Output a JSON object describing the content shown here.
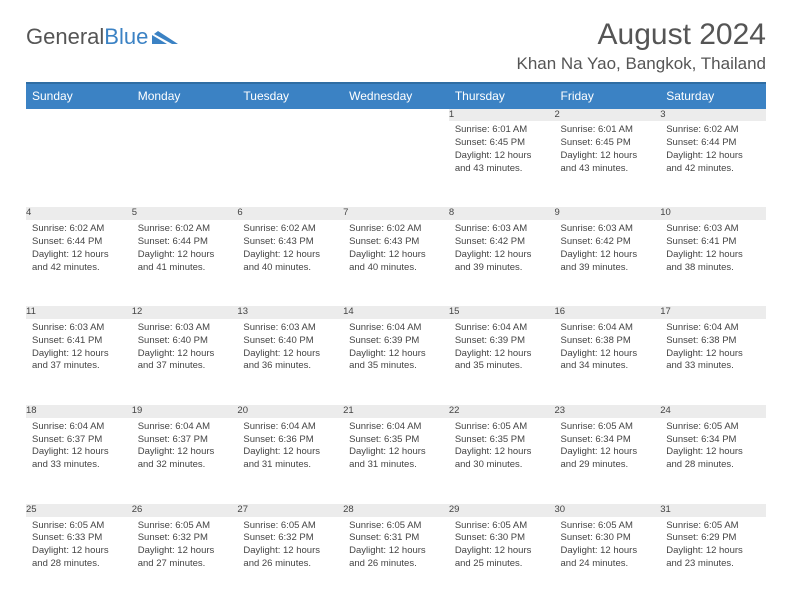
{
  "logo": {
    "text1": "General",
    "text2": "Blue"
  },
  "title": "August 2024",
  "location": "Khan Na Yao, Bangkok, Thailand",
  "colors": {
    "header_bg": "#3b82c4",
    "header_text": "#ffffff",
    "daynum_bg": "#ececec",
    "border": "#3b82c4",
    "text": "#444444",
    "background": "#ffffff"
  },
  "daysOfWeek": [
    "Sunday",
    "Monday",
    "Tuesday",
    "Wednesday",
    "Thursday",
    "Friday",
    "Saturday"
  ],
  "weeks": [
    [
      null,
      null,
      null,
      null,
      {
        "num": "1",
        "sunrise": "6:01 AM",
        "sunset": "6:45 PM",
        "daylight": "12 hours and 43 minutes."
      },
      {
        "num": "2",
        "sunrise": "6:01 AM",
        "sunset": "6:45 PM",
        "daylight": "12 hours and 43 minutes."
      },
      {
        "num": "3",
        "sunrise": "6:02 AM",
        "sunset": "6:44 PM",
        "daylight": "12 hours and 42 minutes."
      }
    ],
    [
      {
        "num": "4",
        "sunrise": "6:02 AM",
        "sunset": "6:44 PM",
        "daylight": "12 hours and 42 minutes."
      },
      {
        "num": "5",
        "sunrise": "6:02 AM",
        "sunset": "6:44 PM",
        "daylight": "12 hours and 41 minutes."
      },
      {
        "num": "6",
        "sunrise": "6:02 AM",
        "sunset": "6:43 PM",
        "daylight": "12 hours and 40 minutes."
      },
      {
        "num": "7",
        "sunrise": "6:02 AM",
        "sunset": "6:43 PM",
        "daylight": "12 hours and 40 minutes."
      },
      {
        "num": "8",
        "sunrise": "6:03 AM",
        "sunset": "6:42 PM",
        "daylight": "12 hours and 39 minutes."
      },
      {
        "num": "9",
        "sunrise": "6:03 AM",
        "sunset": "6:42 PM",
        "daylight": "12 hours and 39 minutes."
      },
      {
        "num": "10",
        "sunrise": "6:03 AM",
        "sunset": "6:41 PM",
        "daylight": "12 hours and 38 minutes."
      }
    ],
    [
      {
        "num": "11",
        "sunrise": "6:03 AM",
        "sunset": "6:41 PM",
        "daylight": "12 hours and 37 minutes."
      },
      {
        "num": "12",
        "sunrise": "6:03 AM",
        "sunset": "6:40 PM",
        "daylight": "12 hours and 37 minutes."
      },
      {
        "num": "13",
        "sunrise": "6:03 AM",
        "sunset": "6:40 PM",
        "daylight": "12 hours and 36 minutes."
      },
      {
        "num": "14",
        "sunrise": "6:04 AM",
        "sunset": "6:39 PM",
        "daylight": "12 hours and 35 minutes."
      },
      {
        "num": "15",
        "sunrise": "6:04 AM",
        "sunset": "6:39 PM",
        "daylight": "12 hours and 35 minutes."
      },
      {
        "num": "16",
        "sunrise": "6:04 AM",
        "sunset": "6:38 PM",
        "daylight": "12 hours and 34 minutes."
      },
      {
        "num": "17",
        "sunrise": "6:04 AM",
        "sunset": "6:38 PM",
        "daylight": "12 hours and 33 minutes."
      }
    ],
    [
      {
        "num": "18",
        "sunrise": "6:04 AM",
        "sunset": "6:37 PM",
        "daylight": "12 hours and 33 minutes."
      },
      {
        "num": "19",
        "sunrise": "6:04 AM",
        "sunset": "6:37 PM",
        "daylight": "12 hours and 32 minutes."
      },
      {
        "num": "20",
        "sunrise": "6:04 AM",
        "sunset": "6:36 PM",
        "daylight": "12 hours and 31 minutes."
      },
      {
        "num": "21",
        "sunrise": "6:04 AM",
        "sunset": "6:35 PM",
        "daylight": "12 hours and 31 minutes."
      },
      {
        "num": "22",
        "sunrise": "6:05 AM",
        "sunset": "6:35 PM",
        "daylight": "12 hours and 30 minutes."
      },
      {
        "num": "23",
        "sunrise": "6:05 AM",
        "sunset": "6:34 PM",
        "daylight": "12 hours and 29 minutes."
      },
      {
        "num": "24",
        "sunrise": "6:05 AM",
        "sunset": "6:34 PM",
        "daylight": "12 hours and 28 minutes."
      }
    ],
    [
      {
        "num": "25",
        "sunrise": "6:05 AM",
        "sunset": "6:33 PM",
        "daylight": "12 hours and 28 minutes."
      },
      {
        "num": "26",
        "sunrise": "6:05 AM",
        "sunset": "6:32 PM",
        "daylight": "12 hours and 27 minutes."
      },
      {
        "num": "27",
        "sunrise": "6:05 AM",
        "sunset": "6:32 PM",
        "daylight": "12 hours and 26 minutes."
      },
      {
        "num": "28",
        "sunrise": "6:05 AM",
        "sunset": "6:31 PM",
        "daylight": "12 hours and 26 minutes."
      },
      {
        "num": "29",
        "sunrise": "6:05 AM",
        "sunset": "6:30 PM",
        "daylight": "12 hours and 25 minutes."
      },
      {
        "num": "30",
        "sunrise": "6:05 AM",
        "sunset": "6:30 PM",
        "daylight": "12 hours and 24 minutes."
      },
      {
        "num": "31",
        "sunrise": "6:05 AM",
        "sunset": "6:29 PM",
        "daylight": "12 hours and 23 minutes."
      }
    ]
  ],
  "labels": {
    "sunrise": "Sunrise:",
    "sunset": "Sunset:",
    "daylight": "Daylight:"
  }
}
